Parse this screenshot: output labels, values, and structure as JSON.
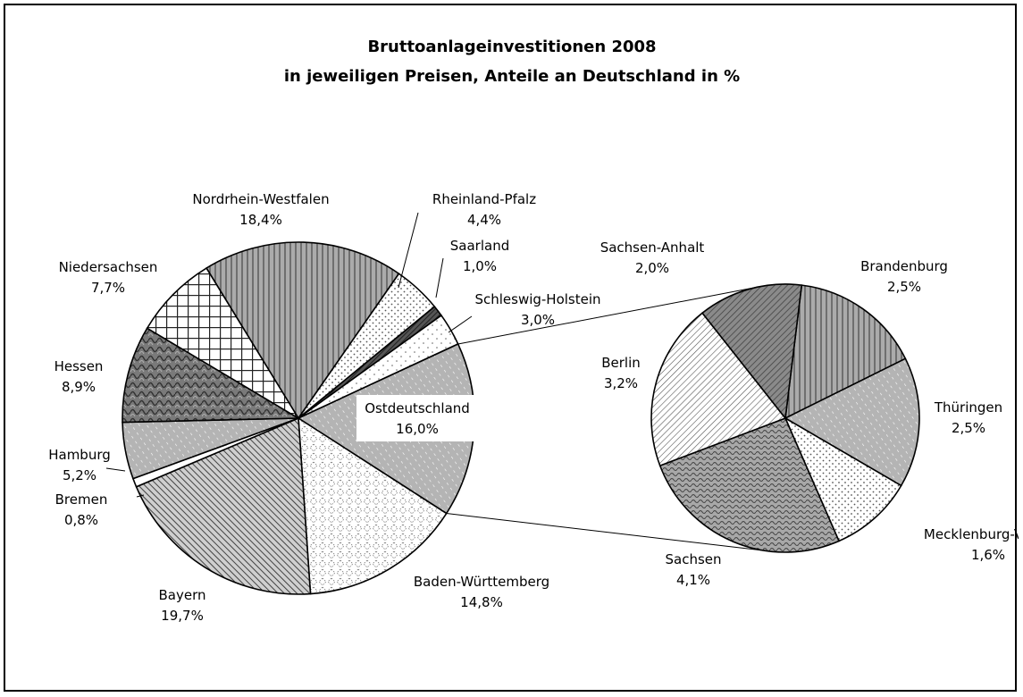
{
  "chart_data": {
    "type": "pie",
    "title": "Bruttoanlageinvestitionen 2008",
    "subtitle": "in jeweiligen Preisen, Anteile an Deutschland in %",
    "main_pie": [
      {
        "name": "Nordrhein-Westfalen",
        "value": 18.4,
        "display": "18,4%",
        "pattern": "vlines"
      },
      {
        "name": "Rheinland-Pfalz",
        "value": 4.4,
        "display": "4,4%",
        "pattern": "dots"
      },
      {
        "name": "Saarland",
        "value": 1.0,
        "display": "1,0%",
        "pattern": "darkdiag"
      },
      {
        "name": "Schleswig-Holstein",
        "value": 3.0,
        "display": "3,0%",
        "pattern": "sparsedots"
      },
      {
        "name": "Ostdeutschland",
        "value": 16.0,
        "display": "16,0%",
        "pattern": "graydiag"
      },
      {
        "name": "Baden-Württemberg",
        "value": 14.8,
        "display": "14,8%",
        "pattern": "diamonds"
      },
      {
        "name": "Bayern",
        "value": 19.7,
        "display": "19,7%",
        "pattern": "fdiag"
      },
      {
        "name": "Bremen",
        "value": 0.8,
        "display": "0,8%",
        "pattern": "white"
      },
      {
        "name": "Hamburg",
        "value": 5.2,
        "display": "5,2%",
        "pattern": "graydiag"
      },
      {
        "name": "Hessen",
        "value": 8.9,
        "display": "8,9%",
        "pattern": "darkweave"
      },
      {
        "name": "Niedersachsen",
        "value": 7.7,
        "display": "7,7%",
        "pattern": "grid"
      }
    ],
    "breakout_of": "Ostdeutschland",
    "secondary_pie": [
      {
        "name": "Brandenburg",
        "value": 2.5,
        "display": "2,5%",
        "pattern": "vlines"
      },
      {
        "name": "Thüringen",
        "value": 2.5,
        "display": "2,5%",
        "pattern": "graydiag"
      },
      {
        "name": "Mecklenburg-Vorpo",
        "value": 1.6,
        "display": "1,6%",
        "pattern": "dots"
      },
      {
        "name": "Sachsen",
        "value": 4.1,
        "display": "4,1%",
        "pattern": "waves"
      },
      {
        "name": "Berlin",
        "value": 3.2,
        "display": "3,2%",
        "pattern": "bdiag"
      },
      {
        "name": "Sachsen-Anhalt",
        "value": 2.0,
        "display": "2,0%",
        "pattern": "darkdiag2"
      }
    ]
  }
}
